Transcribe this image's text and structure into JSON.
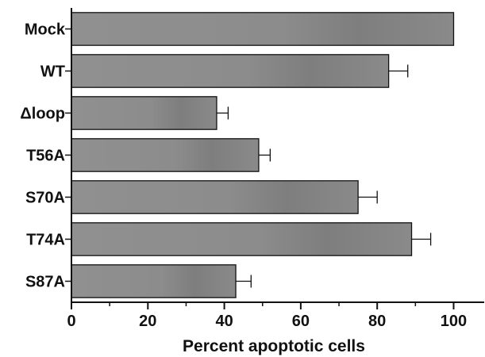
{
  "chart_data": {
    "type": "bar",
    "orientation": "horizontal",
    "categories": [
      "Mock",
      "WT",
      "Δloop",
      "T56A",
      "S70A",
      "T74A",
      "S87A"
    ],
    "values": [
      100,
      83,
      38,
      49,
      75,
      89,
      43
    ],
    "error": [
      null,
      5,
      3,
      3,
      5,
      5,
      4
    ],
    "xlabel": "Percent apoptotic cells",
    "ylabel": "",
    "xlim": [
      0,
      108
    ],
    "xticks": [
      "0",
      "20",
      "40",
      "60",
      "80",
      "100"
    ],
    "grid": false,
    "legend": "none",
    "bar_color": "#8a8a8a"
  }
}
